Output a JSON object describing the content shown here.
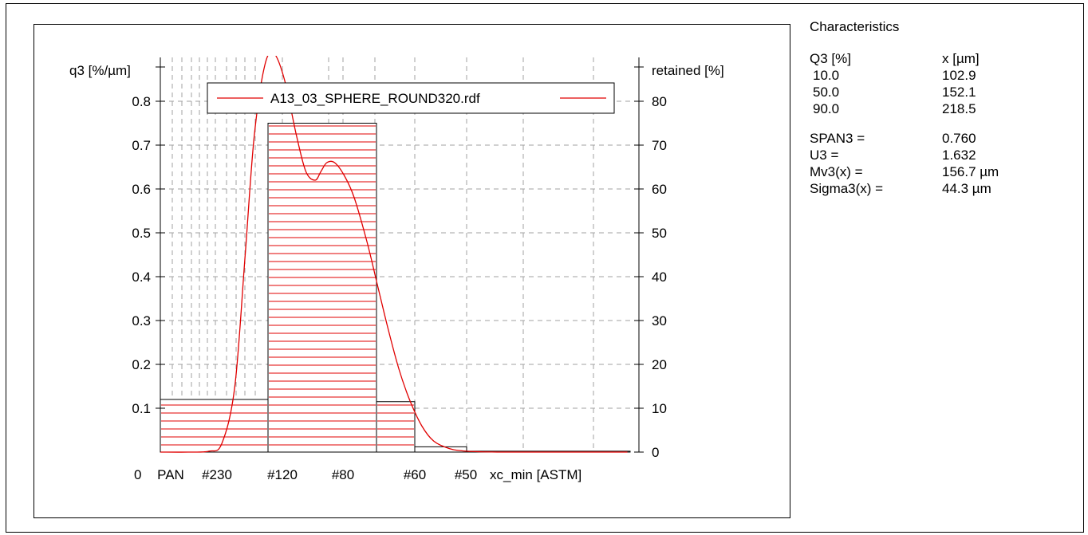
{
  "colors": {
    "series": "#e00000",
    "grid": "#a0a0a0",
    "axis": "#000000",
    "background": "#ffffff"
  },
  "chart_data": {
    "type": "bar",
    "title": "",
    "legend": {
      "label": "A13_03_SPHERE_ROUND320.rdf",
      "placement": "top-center"
    },
    "left_axis": {
      "label": "q3 [%/µm]",
      "ylim": [
        0,
        0.9
      ],
      "ticks": [
        "0.1",
        "0.2",
        "0.3",
        "0.4",
        "0.5",
        "0.6",
        "0.7",
        "0.8"
      ]
    },
    "right_axis": {
      "label": "retained [%]",
      "ylim": [
        0,
        90
      ],
      "ticks": [
        "0",
        "10",
        "20",
        "30",
        "40",
        "50",
        "60",
        "70",
        "80"
      ]
    },
    "x_axis": {
      "label": "xc_min [ASTM]",
      "origin_label": "0",
      "tick_labels": [
        "PAN",
        "#230",
        "#120",
        "#80",
        "#60",
        "#50"
      ]
    },
    "histogram": {
      "name": "retained [%]",
      "bins": [
        {
          "from": "PAN",
          "to": "#120",
          "value": 12.0
        },
        {
          "from": "#120",
          "to": "#60",
          "value": 75.0
        },
        {
          "from": "#60",
          "to": "#50",
          "value": 11.5
        },
        {
          "from": "#50",
          "to": "",
          "value": 1.2
        },
        {
          "from": "",
          "to": "",
          "value": 0.2
        }
      ]
    },
    "density_curve": {
      "name": "A13_03_SPHERE_ROUND320.rdf",
      "x_um": [
        40,
        60,
        75,
        85,
        95,
        103,
        110,
        118,
        125,
        132,
        140,
        146,
        152,
        158,
        164,
        172,
        182,
        192,
        205,
        215,
        225,
        235,
        245,
        258,
        272,
        290,
        310,
        340,
        400,
        460
      ],
      "q3": [
        0.0,
        0.0,
        0.002,
        0.02,
        0.15,
        0.45,
        0.72,
        0.88,
        0.91,
        0.85,
        0.72,
        0.64,
        0.62,
        0.64,
        0.66,
        0.66,
        0.63,
        0.58,
        0.48,
        0.38,
        0.28,
        0.19,
        0.12,
        0.06,
        0.025,
        0.008,
        0.002,
        0.0,
        0.0,
        0.0
      ]
    }
  },
  "characteristics": {
    "title": "Characteristics",
    "header": {
      "k": "Q3 [%]",
      "v": "x [µm]"
    },
    "quantiles": [
      {
        "k": "10.0",
        "v": "102.9"
      },
      {
        "k": "50.0",
        "v": "152.1"
      },
      {
        "k": "90.0",
        "v": "218.5"
      }
    ],
    "stats": [
      {
        "k": "SPAN3 =",
        "v": "0.760"
      },
      {
        "k": "U3 =",
        "v": "1.632"
      },
      {
        "k": "Mv3(x) =",
        "v": "156.7 µm"
      },
      {
        "k": "Sigma3(x) =",
        "v": "44.3 µm"
      }
    ]
  }
}
